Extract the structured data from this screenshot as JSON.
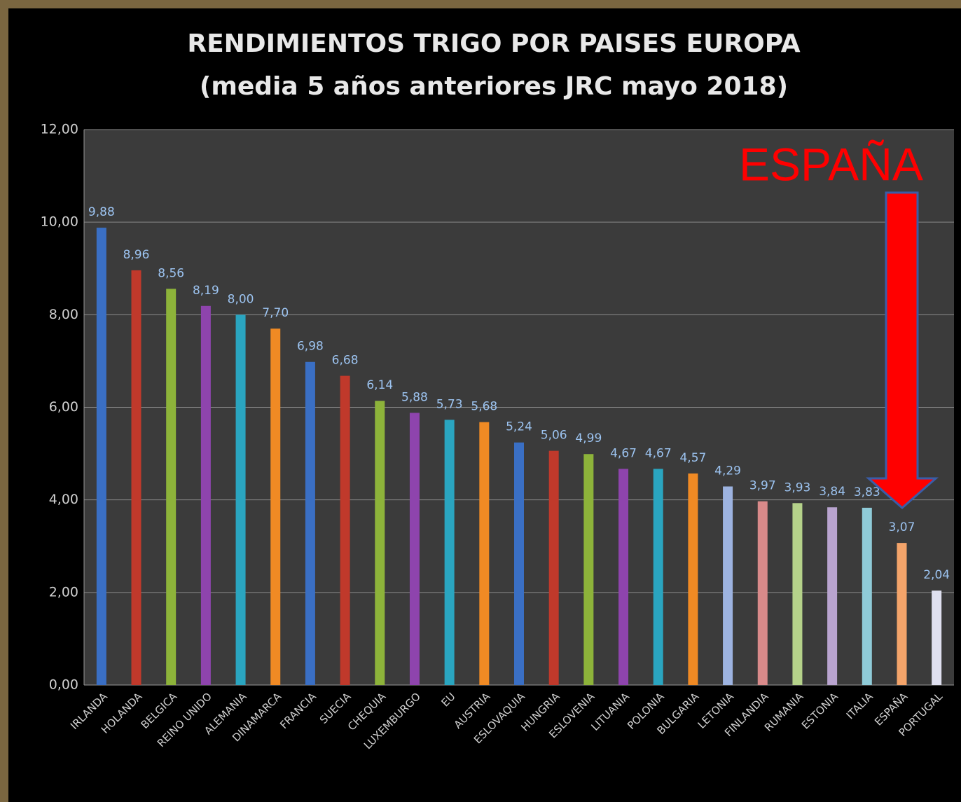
{
  "chart_data": {
    "type": "bar",
    "title": "RENDIMIENTOS TRIGO POR PAISES EUROPA",
    "subtitle": "(media 5 años anteriores  JRC mayo 2018)",
    "annotation": "ESPAÑA",
    "categories": [
      "IRLANDA",
      "HOLANDA",
      "BELGICA",
      "REINO UNIDO",
      "ALEMANIA",
      "DINAMARCA",
      "FRANCIA",
      "SUECIA",
      "CHEQUIA",
      "LUXEMBURGO",
      "EU",
      "AUSTRIA",
      "ESLOVAQUIA",
      "HUNGRIA",
      "ESLOVENIA",
      "LITUANIA",
      "POLONIA",
      "BULGARIA",
      "LETONIA",
      "FINLANDIA",
      "RUMANIA",
      "ESTONIA",
      "ITALIA",
      "ESPAÑA",
      "PORTUGAL"
    ],
    "values": [
      9.88,
      8.96,
      8.56,
      8.19,
      8.0,
      7.7,
      6.98,
      6.68,
      6.14,
      5.88,
      5.73,
      5.68,
      5.24,
      5.06,
      4.99,
      4.67,
      4.67,
      4.57,
      4.29,
      3.97,
      3.93,
      3.84,
      3.83,
      3.07,
      2.04
    ],
    "value_labels": [
      "9,88",
      "8,96",
      "8,56",
      "8,19",
      "8,00",
      "7,70",
      "6,98",
      "6,68",
      "6,14",
      "5,88",
      "5,73",
      "5,68",
      "5,24",
      "5,06",
      "4,99",
      "4,67",
      "4,67",
      "4,57",
      "4,29",
      "3,97",
      "3,93",
      "3,84",
      "3,83",
      "3,07",
      "2,04"
    ],
    "colors": [
      "#3a6fc4",
      "#c0392b",
      "#8db33a",
      "#8e44ad",
      "#2aa5c0",
      "#f08a24",
      "#3a6fc4",
      "#c0392b",
      "#8db33a",
      "#8e44ad",
      "#2aa5c0",
      "#f08a24",
      "#3a6fc4",
      "#c0392b",
      "#8db33a",
      "#8e44ad",
      "#2aa5c0",
      "#f08a24",
      "#9db3e0",
      "#d98a8a",
      "#b5d28a",
      "#b9a4cf",
      "#8fcbd8",
      "#f4a46a",
      "#dfe0f0"
    ],
    "ylim": [
      0,
      12
    ],
    "yticks": [
      {
        "value": 0,
        "label": "0,00"
      },
      {
        "value": 2,
        "label": "2,00"
      },
      {
        "value": 4,
        "label": "4,00"
      },
      {
        "value": 6,
        "label": "6,00"
      },
      {
        "value": 8,
        "label": "8,00"
      },
      {
        "value": 10,
        "label": "10,00"
      },
      {
        "value": 12,
        "label": "12,00"
      }
    ],
    "grid": true
  }
}
